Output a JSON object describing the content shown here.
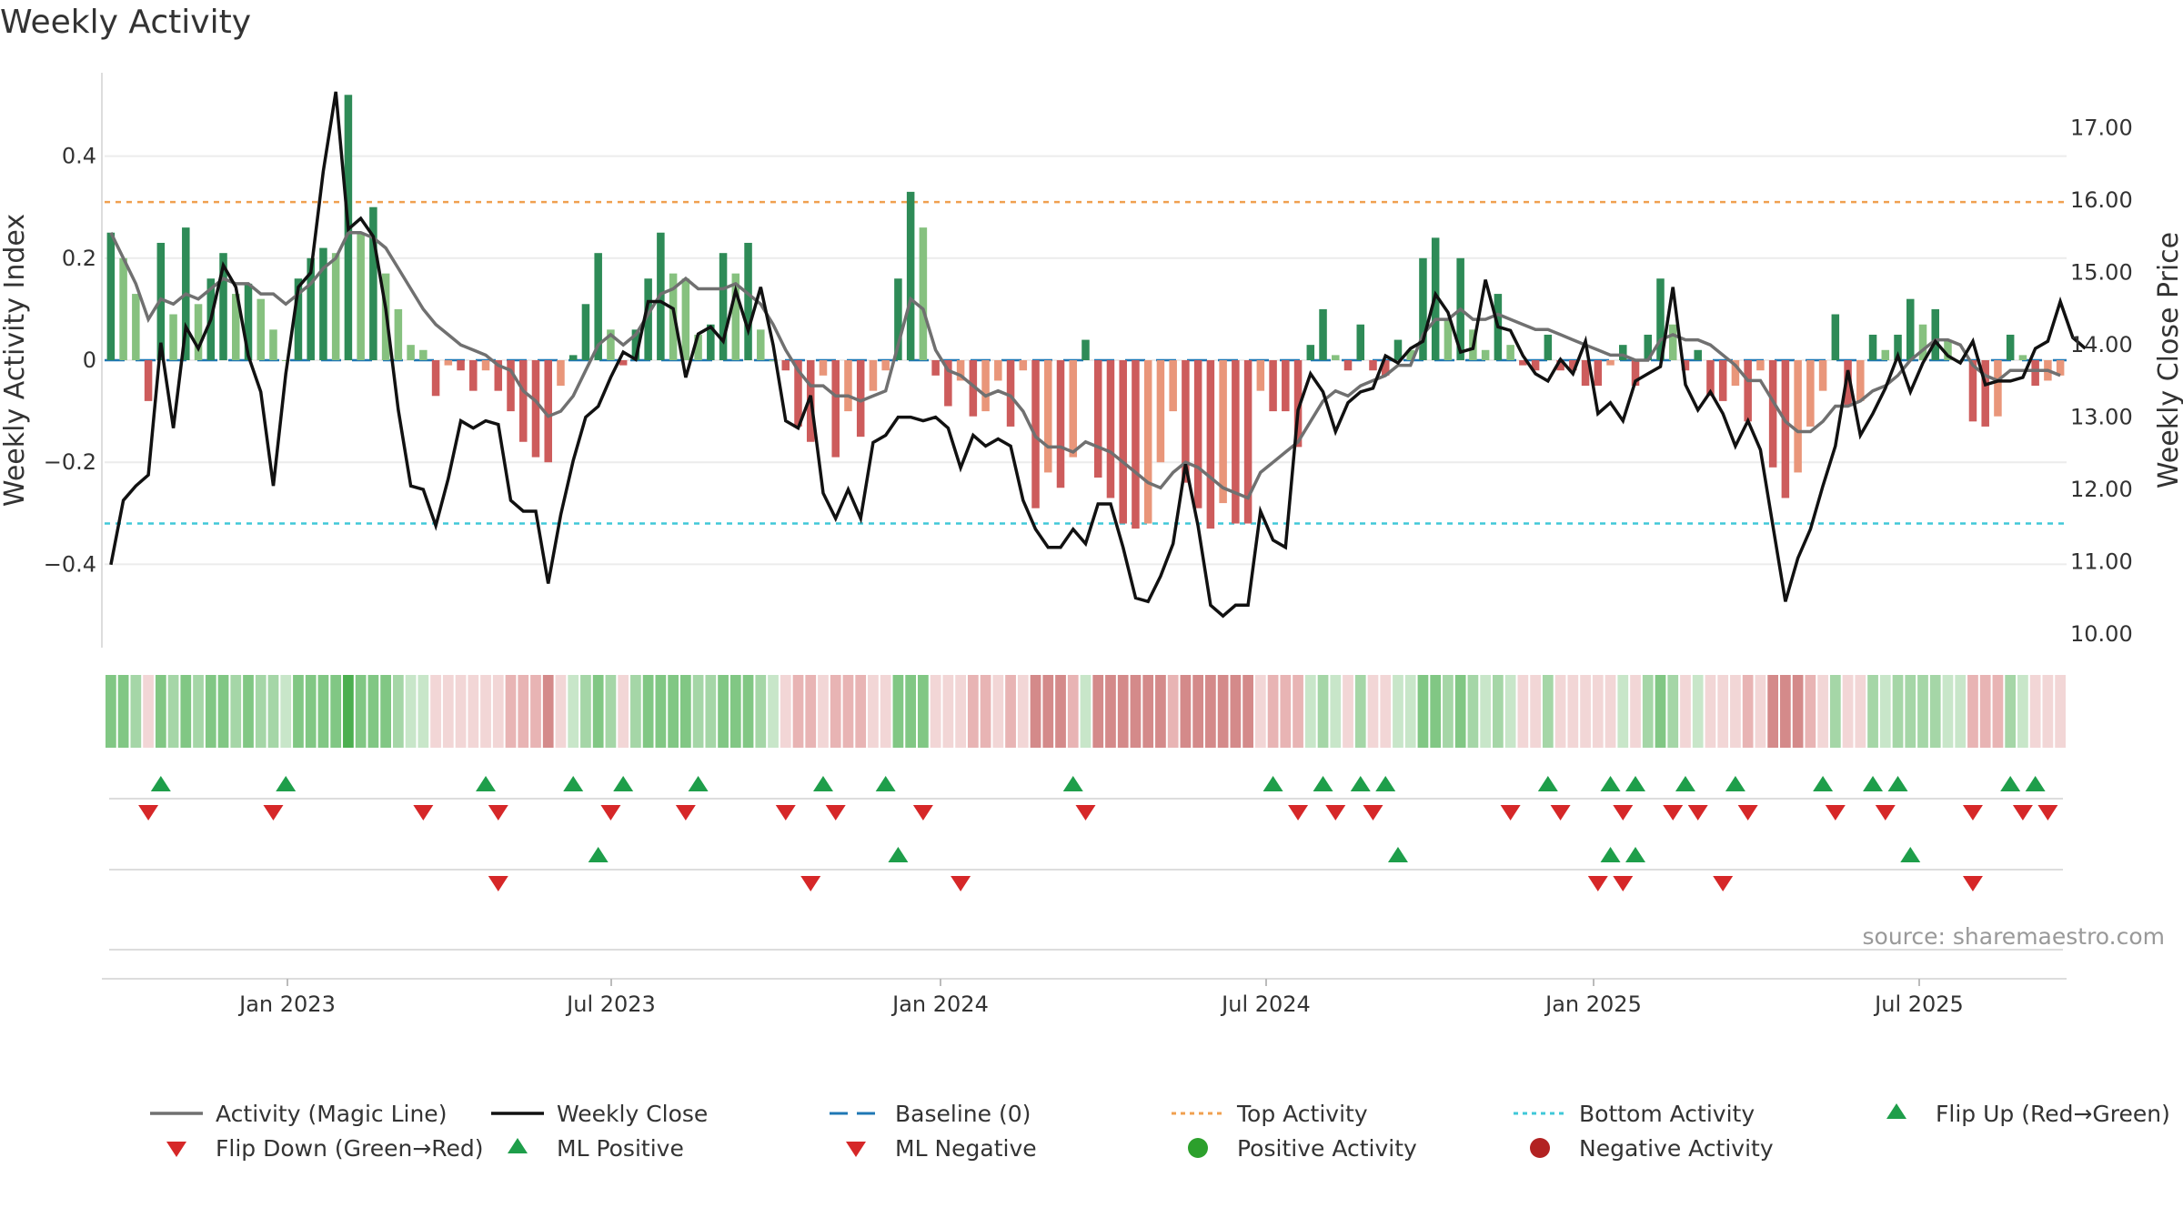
{
  "title": "Weekly Activity",
  "source": "source: sharemaestro.com",
  "colors": {
    "pos_dark": "#2e8b57",
    "pos_light": "#86c17f",
    "neg_dark": "#cd5c5c",
    "neg_light": "#e9967a",
    "magic": "#707070",
    "close": "#111111",
    "baseline": "#1f77b4",
    "top": "#f0a050",
    "bottom": "#40c8d8",
    "flip_up": "#1e9e4a",
    "flip_down": "#d62728",
    "pos_dot": "#2ca02c",
    "neg_dot": "#b22222"
  },
  "chart_data": {
    "type": "bar+line",
    "title": "Weekly Activity",
    "ylabel_left": "Weekly Activity Index",
    "ylabel_right": "Weekly Close Price",
    "ylim_left": [
      -0.56,
      0.56
    ],
    "ylim_right": [
      9.8,
      17.6
    ],
    "yticks_left": [
      {
        "value": 0.4,
        "label": "0.4"
      },
      {
        "value": 0.2,
        "label": "0.2"
      },
      {
        "value": 0,
        "label": "0"
      },
      {
        "value": -0.2,
        "label": "−0.2"
      },
      {
        "value": -0.4,
        "label": "−0.4"
      }
    ],
    "yticks_right": [
      {
        "value": 17,
        "label": "17.00"
      },
      {
        "value": 16,
        "label": "16.00"
      },
      {
        "value": 15,
        "label": "15.00"
      },
      {
        "value": 14,
        "label": "14.00"
      },
      {
        "value": 13,
        "label": "13.00"
      },
      {
        "value": 12,
        "label": "12.00"
      },
      {
        "value": 11,
        "label": "11.00"
      },
      {
        "value": 10,
        "label": "10.00"
      }
    ],
    "x_tick_labels": [
      "Jan 2023",
      "Jul 2023",
      "Jan 2024",
      "Jul 2024",
      "Jan 2025",
      "Jul 2025"
    ],
    "top_activity": 0.31,
    "bottom_activity": -0.32,
    "activity": [
      0.25,
      0.2,
      0.13,
      -0.08,
      0.23,
      0.09,
      0.26,
      0.11,
      0.16,
      0.21,
      0.13,
      0.15,
      0.12,
      0.06,
      0.0,
      0.16,
      0.2,
      0.22,
      0.21,
      0.52,
      0.25,
      0.3,
      0.17,
      0.1,
      0.03,
      0.02,
      -0.07,
      -0.01,
      -0.02,
      -0.06,
      -0.02,
      -0.06,
      -0.1,
      -0.16,
      -0.19,
      -0.2,
      -0.05,
      0.01,
      0.11,
      0.21,
      0.06,
      -0.01,
      0.06,
      0.16,
      0.25,
      0.17,
      0.16,
      0.05,
      0.07,
      0.21,
      0.17,
      0.23,
      0.06,
      0.0,
      -0.02,
      -0.13,
      -0.16,
      -0.03,
      -0.19,
      -0.1,
      -0.15,
      -0.06,
      -0.02,
      0.16,
      0.33,
      0.26,
      -0.03,
      -0.09,
      -0.04,
      -0.11,
      -0.1,
      -0.04,
      -0.13,
      -0.02,
      -0.29,
      -0.22,
      -0.25,
      -0.19,
      0.04,
      -0.23,
      -0.27,
      -0.32,
      -0.33,
      -0.32,
      -0.2,
      -0.1,
      -0.24,
      -0.29,
      -0.33,
      -0.28,
      -0.32,
      -0.32,
      -0.06,
      -0.1,
      -0.1,
      -0.17,
      0.03,
      0.1,
      0.01,
      -0.02,
      0.07,
      -0.02,
      -0.03,
      0.04,
      0.02,
      0.2,
      0.24,
      0.08,
      0.2,
      0.06,
      0.02,
      0.13,
      0.03,
      -0.01,
      -0.02,
      0.05,
      -0.02,
      -0.02,
      -0.05,
      -0.05,
      -0.01,
      0.03,
      -0.05,
      0.05,
      0.16,
      0.07,
      -0.02,
      0.02,
      -0.07,
      -0.08,
      -0.05,
      -0.12,
      -0.02,
      -0.21,
      -0.27,
      -0.22,
      -0.13,
      -0.06,
      0.09,
      -0.09,
      -0.08,
      0.05,
      0.02,
      0.05,
      0.12,
      0.07,
      0.1,
      0.04,
      0.0,
      -0.12,
      -0.13,
      -0.11,
      0.05,
      0.01,
      -0.05,
      -0.04,
      -0.03
    ],
    "magic_line": [
      0.25,
      0.2,
      0.15,
      0.08,
      0.12,
      0.11,
      0.13,
      0.12,
      0.14,
      0.16,
      0.15,
      0.15,
      0.13,
      0.13,
      0.11,
      0.13,
      0.15,
      0.18,
      0.2,
      0.25,
      0.25,
      0.24,
      0.22,
      0.18,
      0.14,
      0.1,
      0.07,
      0.05,
      0.03,
      0.02,
      0.01,
      -0.01,
      -0.02,
      -0.06,
      -0.08,
      -0.11,
      -0.1,
      -0.07,
      -0.02,
      0.03,
      0.05,
      0.03,
      0.05,
      0.09,
      0.13,
      0.14,
      0.16,
      0.14,
      0.14,
      0.14,
      0.15,
      0.13,
      0.11,
      0.07,
      0.02,
      -0.02,
      -0.05,
      -0.05,
      -0.07,
      -0.07,
      -0.08,
      -0.07,
      -0.06,
      0.03,
      0.12,
      0.1,
      0.02,
      -0.02,
      -0.03,
      -0.05,
      -0.07,
      -0.06,
      -0.07,
      -0.1,
      -0.15,
      -0.17,
      -0.17,
      -0.18,
      -0.16,
      -0.17,
      -0.18,
      -0.2,
      -0.22,
      -0.24,
      -0.25,
      -0.22,
      -0.2,
      -0.21,
      -0.23,
      -0.25,
      -0.26,
      -0.27,
      -0.22,
      -0.2,
      -0.18,
      -0.16,
      -0.12,
      -0.08,
      -0.06,
      -0.07,
      -0.05,
      -0.04,
      -0.03,
      -0.01,
      -0.01,
      0.05,
      0.08,
      0.08,
      0.1,
      0.08,
      0.08,
      0.09,
      0.08,
      0.07,
      0.06,
      0.06,
      0.05,
      0.04,
      0.03,
      0.02,
      0.01,
      0.01,
      0.0,
      0.0,
      0.04,
      0.05,
      0.04,
      0.04,
      0.03,
      0.01,
      -0.01,
      -0.04,
      -0.04,
      -0.08,
      -0.12,
      -0.14,
      -0.14,
      -0.12,
      -0.09,
      -0.09,
      -0.08,
      -0.06,
      -0.05,
      -0.03,
      0.0,
      0.02,
      0.04,
      0.04,
      0.03,
      -0.01,
      -0.03,
      -0.04,
      -0.02,
      -0.02,
      -0.02,
      -0.02,
      -0.03
    ],
    "weekly_close": [
      10.96,
      11.85,
      12.05,
      12.2,
      14.03,
      12.85,
      14.25,
      13.95,
      14.35,
      15.1,
      14.8,
      13.85,
      13.35,
      12.05,
      13.6,
      14.8,
      15.0,
      16.4,
      17.5,
      15.6,
      15.75,
      15.5,
      14.5,
      13.1,
      12.05,
      12.0,
      11.5,
      12.15,
      12.95,
      12.85,
      12.95,
      12.9,
      11.85,
      11.7,
      11.7,
      10.7,
      11.65,
      12.4,
      13.0,
      13.15,
      13.55,
      13.9,
      13.8,
      14.6,
      14.6,
      14.5,
      13.55,
      14.15,
      14.25,
      14.05,
      14.75,
      14.2,
      14.8,
      14.0,
      12.95,
      12.85,
      13.3,
      11.95,
      11.6,
      12.0,
      11.6,
      12.65,
      12.75,
      13.0,
      13.0,
      12.95,
      13.0,
      12.85,
      12.3,
      12.75,
      12.6,
      12.7,
      12.6,
      11.85,
      11.45,
      11.2,
      11.2,
      11.45,
      11.25,
      11.8,
      11.8,
      11.2,
      10.5,
      10.45,
      10.8,
      11.25,
      12.35,
      11.5,
      10.4,
      10.25,
      10.4,
      10.4,
      11.7,
      11.3,
      11.2,
      13.1,
      13.6,
      13.35,
      12.8,
      13.2,
      13.35,
      13.4,
      13.85,
      13.75,
      13.95,
      14.05,
      14.7,
      14.45,
      13.9,
      13.95,
      14.9,
      14.25,
      14.2,
      13.85,
      13.6,
      13.5,
      13.8,
      13.6,
      14.05,
      13.05,
      13.2,
      12.95,
      13.5,
      13.6,
      13.7,
      14.8,
      13.45,
      13.1,
      13.35,
      13.05,
      12.6,
      12.95,
      12.55,
      11.5,
      10.45,
      11.05,
      11.45,
      12.05,
      12.6,
      13.65,
      12.75,
      13.05,
      13.4,
      13.85,
      13.35,
      13.75,
      14.05,
      13.85,
      13.75,
      14.05,
      13.45,
      13.5,
      13.5,
      13.55,
      13.95,
      14.05,
      14.6,
      14.1,
      13.95
    ],
    "band_palette": [
      "#4caf50",
      "#81c784",
      "#a5d6a7",
      "#c8e6c9",
      "#f2d6d6",
      "#e8b4b4",
      "#d48a8a"
    ],
    "flip_up_weeks": [
      4,
      14,
      30,
      37,
      41,
      47,
      57,
      62,
      77,
      93,
      97,
      100,
      102,
      115,
      120,
      122,
      126,
      130,
      137,
      141,
      143,
      152,
      154
    ],
    "flip_down_weeks": [
      3,
      13,
      25,
      31,
      40,
      46,
      54,
      58,
      65,
      78,
      95,
      98,
      101,
      112,
      116,
      121,
      125,
      127,
      131,
      138,
      142,
      149,
      153,
      155
    ],
    "ml_positive_weeks": [
      39,
      63,
      103,
      120,
      122,
      144
    ],
    "ml_negative_weeks": [
      31,
      56,
      68,
      119,
      121,
      129,
      149
    ],
    "legend": [
      {
        "label": "Activity (Magic Line)",
        "kind": "line-gray"
      },
      {
        "label": "Weekly Close",
        "kind": "line-black"
      },
      {
        "label": "Baseline (0)",
        "kind": "dash-blue"
      },
      {
        "label": "Top Activity",
        "kind": "dot-orange"
      },
      {
        "label": "Bottom Activity",
        "kind": "dot-cyan"
      },
      {
        "label": "Flip Up (Red→Green)",
        "kind": "tri-up"
      },
      {
        "label": "Flip Down (Green→Red)",
        "kind": "tri-down"
      },
      {
        "label": "ML Positive",
        "kind": "tri-up"
      },
      {
        "label": "ML Negative",
        "kind": "tri-down"
      },
      {
        "label": "Positive Activity",
        "kind": "dot-green"
      },
      {
        "label": "Negative Activity",
        "kind": "dot-red"
      }
    ]
  }
}
